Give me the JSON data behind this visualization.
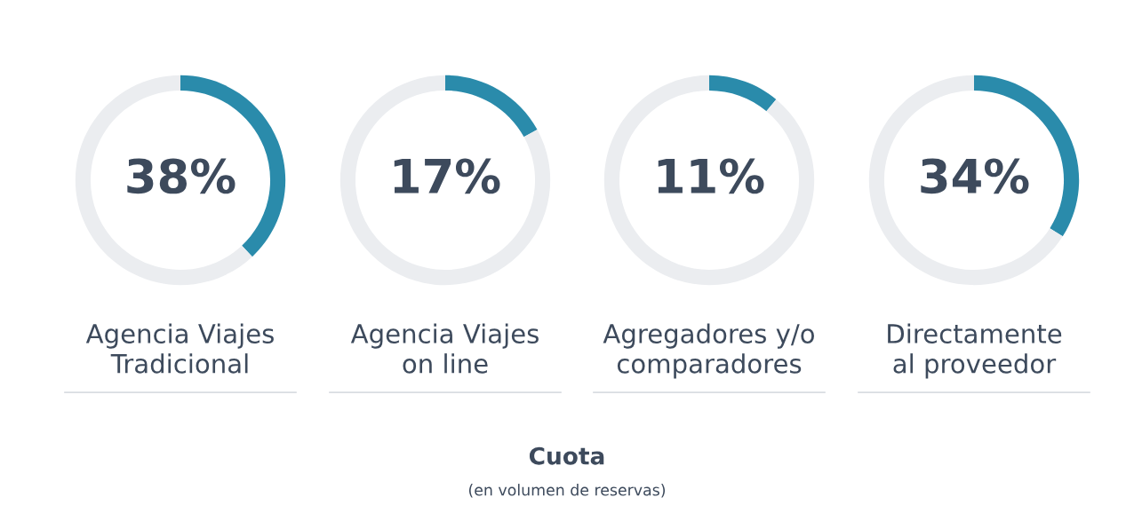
{
  "chart_data": [
    {
      "type": "donut",
      "title": "Agencia Viajes\nTradicional",
      "categories": [
        null,
        null
      ],
      "values": [
        38,
        62
      ],
      "colors": [
        "#2a8bab",
        "#ebedf0"
      ],
      "value_labels": [
        "38%",
        null
      ]
    },
    {
      "type": "donut",
      "title": "Agencia Viajes\non line",
      "categories": [
        null,
        null
      ],
      "values": [
        17,
        83
      ],
      "colors": [
        "#2a8bab",
        "#ebedf0"
      ],
      "value_labels": [
        "17%",
        null
      ]
    },
    {
      "type": "donut",
      "title": "Agregadores y/o\ncomparadores",
      "categories": [
        null,
        null
      ],
      "values": [
        11,
        89
      ],
      "colors": [
        "#2a8bab",
        "#ebedf0"
      ],
      "value_labels": [
        "11%",
        null
      ]
    },
    {
      "type": "donut",
      "title": "Directamente\nal proveedor",
      "categories": [
        null,
        null
      ],
      "values": [
        34,
        66
      ],
      "colors": [
        "#2a8bab",
        "#ebedf0"
      ],
      "value_labels": [
        "34%",
        null
      ]
    },
    {
      "type": "other",
      "title": "Cuota",
      "subtitle": "(en volumen de reservas)"
    }
  ]
}
